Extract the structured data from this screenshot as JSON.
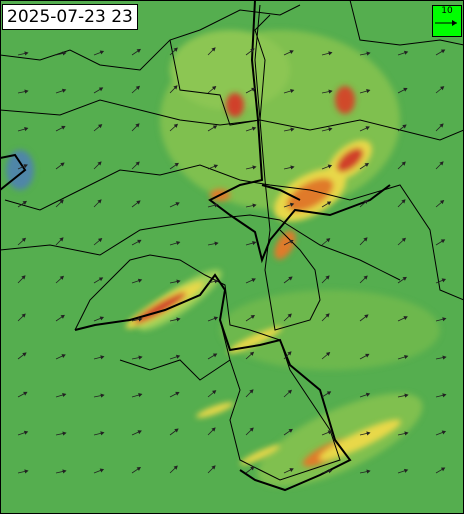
{
  "header": {
    "timestamp": "2025-07-23 23"
  },
  "legend": {
    "label": "10"
  }
}
